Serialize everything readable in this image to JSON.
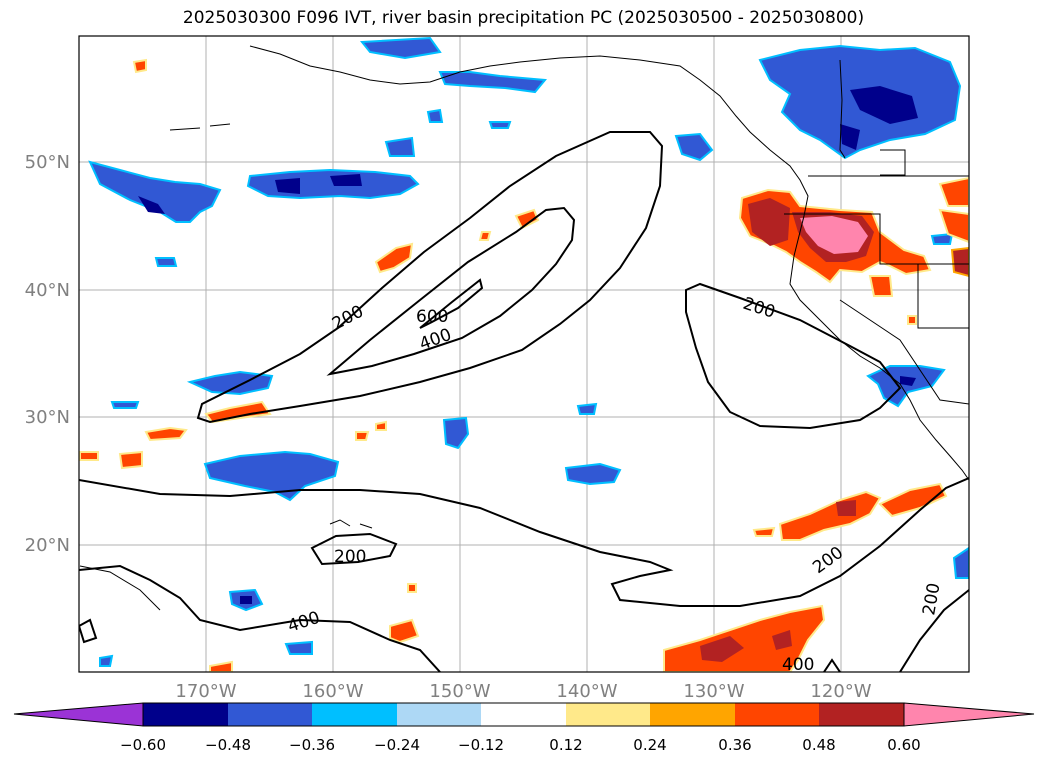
{
  "title": "2025030300 F096 IVT, river basin precipitation PC (2025030500 - 2025030800)",
  "map": {
    "lat_labels": [
      "50°N",
      "40°N",
      "30°N",
      "20°N"
    ],
    "lon_labels": [
      "170°W",
      "160°W",
      "150°W",
      "140°W",
      "130°W",
      "120°W"
    ],
    "axis_label_color": "#808080",
    "ivt_contour_labels": [
      "200",
      "600",
      "400",
      "200",
      "200",
      "400",
      "200",
      "200",
      "400"
    ]
  },
  "colorbar": {
    "colors": [
      "#9b33d6",
      "#00008b",
      "#3158d4",
      "#00bfff",
      "#add8f5",
      "#ffffff",
      "#ffe98a",
      "#ffa500",
      "#ff4500",
      "#b22222",
      "#ff85ad"
    ],
    "tick_labels": [
      "−0.60",
      "−0.48",
      "−0.36",
      "−0.24",
      "−0.12",
      "0.12",
      "0.24",
      "0.36",
      "0.48",
      "0.60"
    ]
  }
}
